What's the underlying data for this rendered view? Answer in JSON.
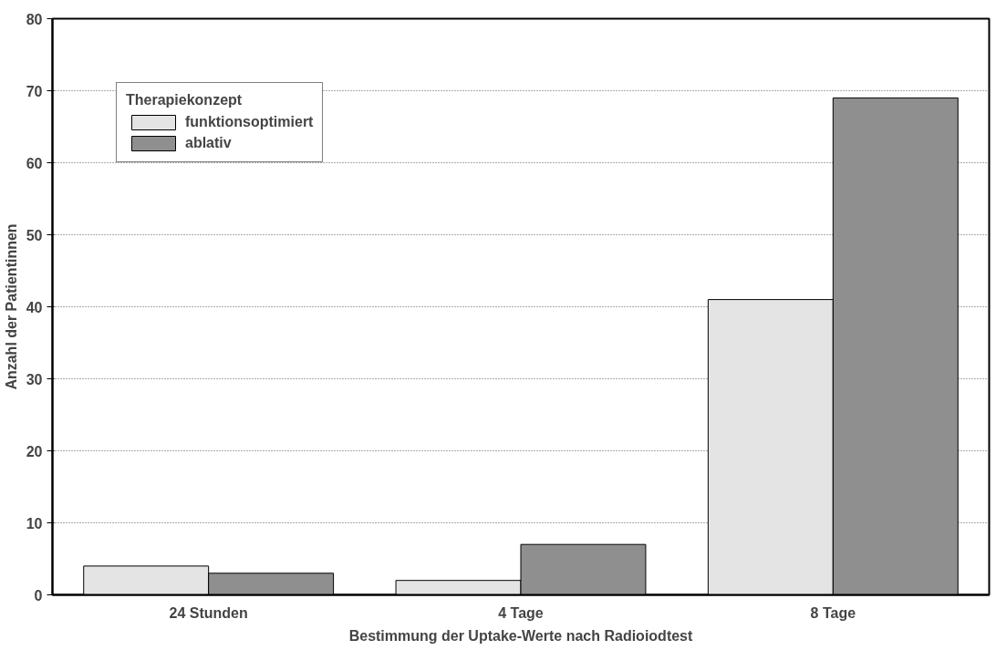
{
  "chart_data": {
    "type": "bar",
    "xlabel": "Bestimmung der Uptake-Werte nach Radioiodtest",
    "ylabel": "Anzahl der Patientinnen",
    "legend_title": "Therapiekonzept",
    "categories": [
      "24 Stunden",
      "4 Tage",
      "8 Tage"
    ],
    "series": [
      {
        "name": "funktionsoptimiert",
        "color": "#e4e4e4",
        "values": [
          4,
          2,
          41
        ]
      },
      {
        "name": "ablativ",
        "color": "#8f8f8f",
        "values": [
          3,
          7,
          69
        ]
      }
    ],
    "ylim": [
      0,
      80
    ],
    "yticks": [
      0,
      10,
      20,
      30,
      40,
      50,
      60,
      70,
      80
    ],
    "grid": "y",
    "legend": "top left"
  }
}
